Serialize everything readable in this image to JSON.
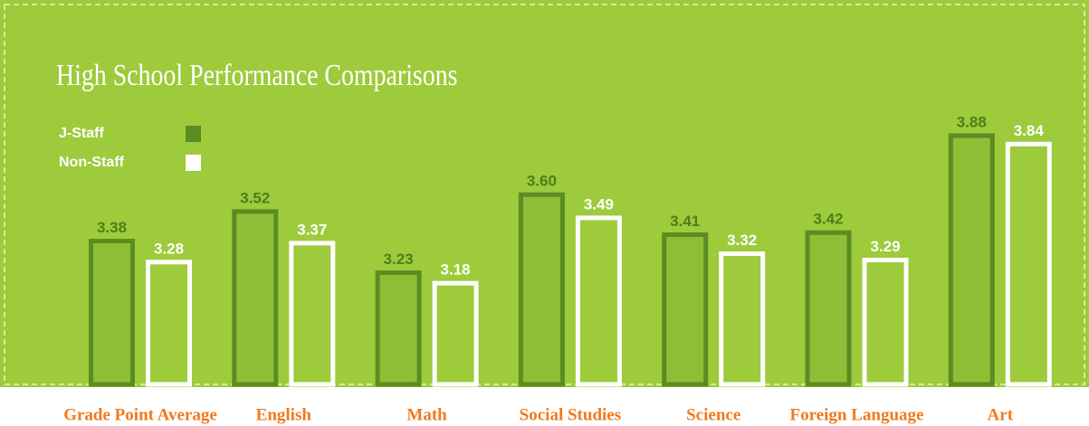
{
  "chart_data": {
    "type": "bar",
    "title": "High School Performance Comparisons",
    "categories": [
      "Grade Point Average",
      "English",
      "Math",
      "Social Studies",
      "Science",
      "Foreign Language",
      "Art"
    ],
    "series": [
      {
        "name": "J-Staff",
        "color": "#5b8c22",
        "values": [
          3.38,
          3.52,
          3.23,
          3.6,
          3.41,
          3.42,
          3.88
        ],
        "value_labels": [
          "3.38",
          "3.52",
          "3.23",
          "3.60",
          "3.41",
          "3.42",
          "3.88"
        ]
      },
      {
        "name": "Non-Staff",
        "color": "#ffffff",
        "values": [
          3.28,
          3.37,
          3.18,
          3.49,
          3.32,
          3.29,
          3.84
        ],
        "value_labels": [
          "3.28",
          "3.37",
          "3.18",
          "3.49",
          "3.32",
          "3.29",
          "3.84"
        ]
      }
    ],
    "ylim": [
      2.7,
      4.0
    ]
  }
}
